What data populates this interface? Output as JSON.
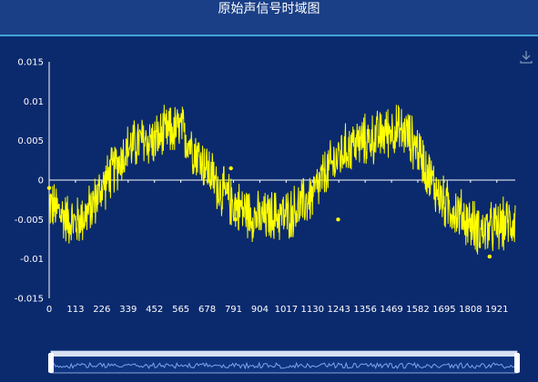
{
  "header": {
    "title": "原始声信号时域图"
  },
  "toolbar": {
    "download_icon": "download-icon"
  },
  "colors": {
    "background": "#0b2a6e",
    "title_bar": "#1a3f86",
    "series": "#ffff00",
    "axis": "#ffffff",
    "slider": "#5f7fc4"
  },
  "chart_data": {
    "type": "line",
    "title": "原始声信号时域图",
    "xlabel": "",
    "ylabel": "",
    "x_ticks": [
      "0",
      "113",
      "226",
      "339",
      "452",
      "565",
      "678",
      "791",
      "904",
      "1017",
      "1130",
      "1243",
      "1356",
      "1469",
      "1582",
      "1695",
      "1808",
      "1921"
    ],
    "y_ticks": [
      "0.015",
      "0.01",
      "0.005",
      "0",
      "-0.005",
      "-0.01",
      "-0.015"
    ],
    "xlim": [
      0,
      2000
    ],
    "ylim": [
      -0.015,
      0.015
    ],
    "grid": false,
    "series": [
      {
        "envelope_x": [
          0,
          60,
          113,
          170,
          226,
          280,
          339,
          400,
          452,
          500,
          565,
          620,
          678,
          740,
          791,
          850,
          904,
          960,
          1017,
          1070,
          1130,
          1190,
          1243,
          1300,
          1356,
          1410,
          1469,
          1530,
          1582,
          1640,
          1695,
          1750,
          1808,
          1860,
          1921,
          2000
        ],
        "envelope_y": [
          -0.003,
          -0.0045,
          -0.0055,
          -0.004,
          -0.001,
          0.0015,
          0.004,
          0.005,
          0.005,
          0.006,
          0.0065,
          0.004,
          0.0015,
          -0.0015,
          -0.003,
          -0.004,
          -0.005,
          -0.0045,
          -0.0045,
          -0.0035,
          -0.002,
          0.001,
          0.003,
          0.0045,
          0.005,
          0.0055,
          0.0065,
          0.006,
          0.004,
          0.0,
          -0.003,
          -0.004,
          -0.0055,
          -0.0065,
          -0.006,
          -0.005
        ],
        "noise_amplitude": 0.0032
      }
    ],
    "slider": {
      "start": 0,
      "end": 100
    }
  }
}
